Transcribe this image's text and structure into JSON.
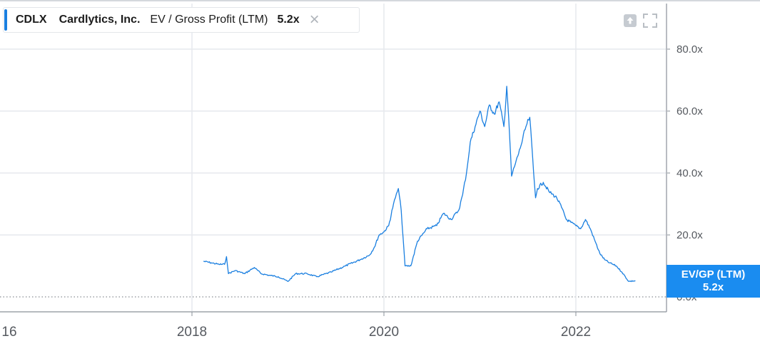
{
  "legend": {
    "ticker": "CDLX",
    "company": "Cardlytics, Inc.",
    "metric": "EV / Gross Profit (LTM)",
    "value": "5.2x",
    "close_symbol": "×"
  },
  "badge": {
    "line1": "EV/GP (LTM)",
    "line2": "5.2x"
  },
  "icons": [
    "close-icon",
    "export-icon",
    "fullscreen-icon"
  ],
  "colors": {
    "line": "#1a7fe0",
    "badge": "#1a8cf0",
    "grid": "#e6e9ed"
  },
  "chart_data": {
    "type": "line",
    "title": "",
    "xlabel": "",
    "ylabel": "",
    "x_ticks": [
      "16",
      "2018",
      "2020",
      "2022"
    ],
    "y_ticks": [
      "0.0x",
      "20.0x",
      "40.0x",
      "60.0x",
      "80.0x"
    ],
    "xlim": [
      2016.0,
      2023.45
    ],
    "ylim": [
      0,
      93
    ],
    "grid": true,
    "series": [
      {
        "x": [
          2018.12,
          2018.2,
          2018.28,
          2018.34,
          2018.36,
          2018.38,
          2018.45,
          2018.55,
          2018.65,
          2018.72,
          2018.8,
          2018.9,
          2019.0,
          2019.08,
          2019.2,
          2019.3,
          2019.45,
          2019.6,
          2019.75,
          2019.85,
          2019.9,
          2019.95,
          2020.0,
          2020.05,
          2020.1,
          2020.12,
          2020.15,
          2020.18,
          2020.22,
          2020.28,
          2020.35,
          2020.45,
          2020.55,
          2020.62,
          2020.7,
          2020.78,
          2020.82,
          2020.86,
          2020.9,
          2020.95,
          2021.0,
          2021.05,
          2021.1,
          2021.15,
          2021.2,
          2021.25,
          2021.28,
          2021.3,
          2021.33,
          2021.37,
          2021.42,
          2021.48,
          2021.52,
          2021.56,
          2021.58,
          2021.6,
          2021.66,
          2021.72,
          2021.8,
          2021.85,
          2021.9,
          2021.95,
          2022.0,
          2022.05,
          2022.1,
          2022.15,
          2022.2,
          2022.25,
          2022.3,
          2022.35,
          2022.42,
          2022.48,
          2022.55,
          2022.62
        ],
        "values": [
          11.5,
          11,
          10.5,
          10.5,
          13,
          7.5,
          8.5,
          7.5,
          9.5,
          7.5,
          7,
          6.5,
          5,
          7.5,
          7.5,
          6.5,
          8,
          10,
          12,
          13.5,
          16,
          20,
          21,
          23,
          30,
          32,
          35,
          28,
          10,
          10,
          18,
          22,
          23,
          27,
          25,
          28,
          33,
          40,
          50,
          55,
          60,
          55,
          62,
          59,
          63,
          55,
          68,
          58,
          39,
          43,
          48,
          55,
          58,
          40,
          32,
          35,
          37,
          34,
          32,
          29,
          25,
          24,
          23,
          22,
          25,
          22,
          18,
          14,
          12,
          11,
          10,
          8,
          5,
          5.2
        ]
      }
    ]
  }
}
